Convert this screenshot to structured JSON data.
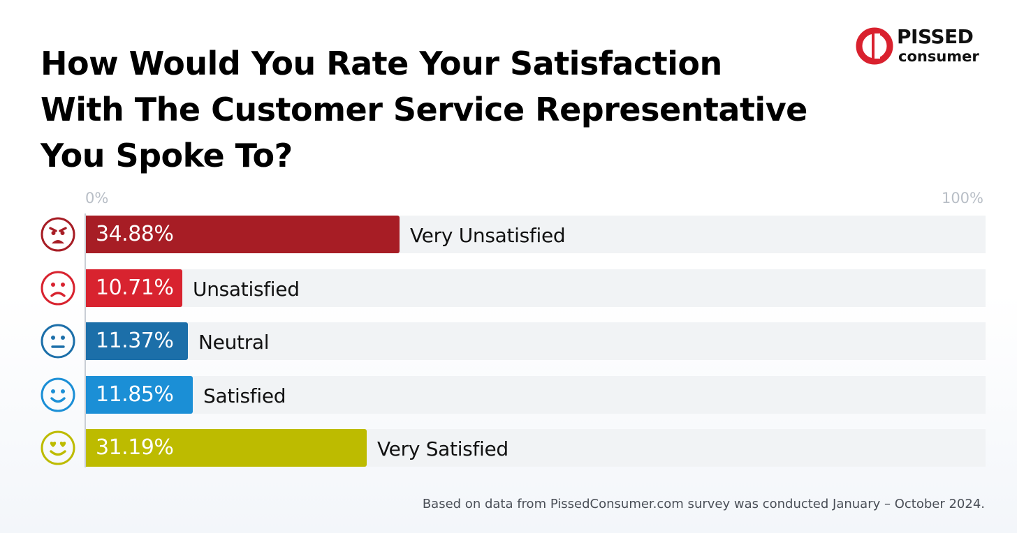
{
  "brand": {
    "name_line1": "PISSED",
    "name_line2": "consumer",
    "accent": "#d9212e"
  },
  "footnote": "Based on data from PissedConsumer.com survey was conducted January – October 2024.",
  "chart_data": {
    "type": "bar",
    "orientation": "horizontal",
    "title_lines": [
      "How Would You Rate Your Satisfaction",
      "With The Customer Service Representative",
      "You Spoke To?"
    ],
    "axis": {
      "min_label": "0%",
      "max_label": "100%",
      "xlim": [
        0,
        100
      ]
    },
    "grid": false,
    "categories": [
      "Very Unsatisfied",
      "Unsatisfied",
      "Neutral",
      "Satisfied",
      "Very Satisfied"
    ],
    "values": [
      34.88,
      10.71,
      11.37,
      11.85,
      31.19
    ],
    "value_labels": [
      "34.88%",
      "10.71%",
      "11.37%",
      "11.85%",
      "31.19%"
    ],
    "colors": [
      "#a71d25",
      "#d8232f",
      "#1c6fa9",
      "#1b8fd6",
      "#bdbb00"
    ],
    "icons": [
      "very-unsatisfied-face-icon",
      "unsatisfied-face-icon",
      "neutral-face-icon",
      "satisfied-face-icon",
      "very-satisfied-face-icon"
    ]
  }
}
